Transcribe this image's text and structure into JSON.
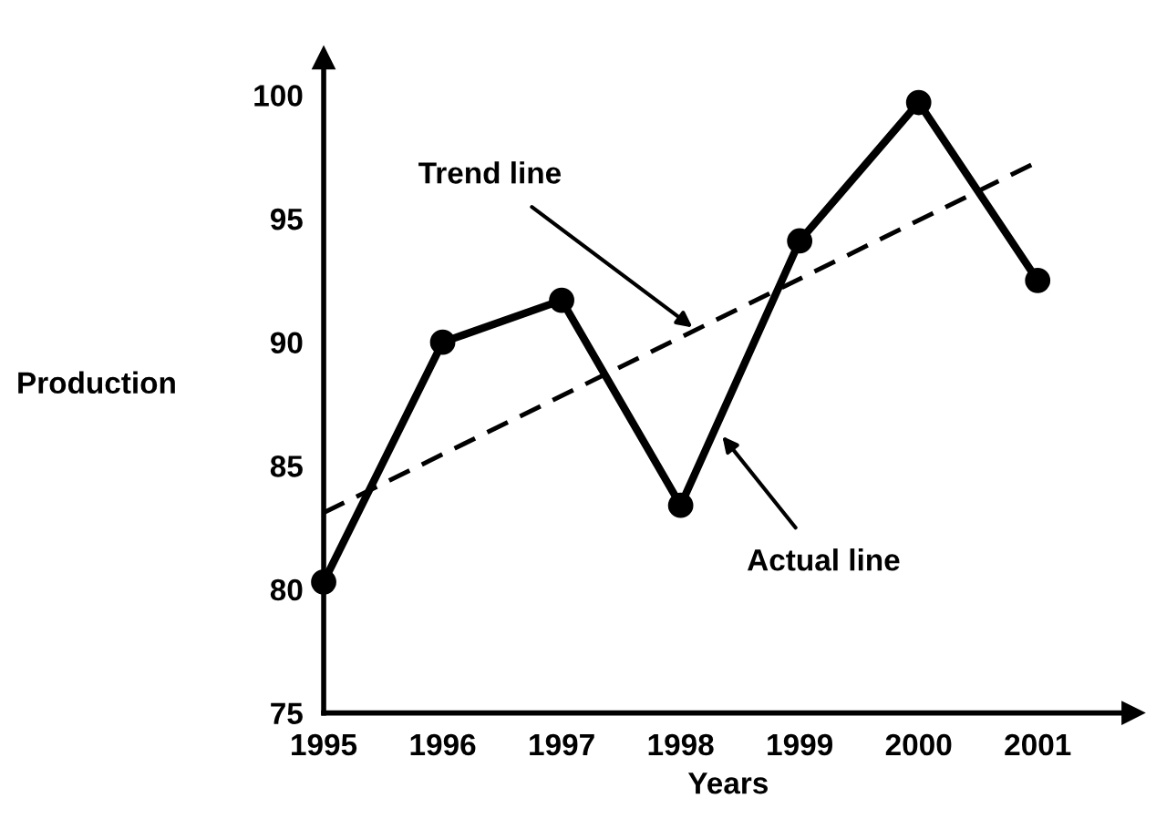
{
  "chart_data": {
    "type": "line",
    "xlabel": "Years",
    "ylabel": "Production",
    "series": [
      {
        "color": "#000000",
        "marker": "circle",
        "line_style": "solid",
        "x": [
          1995,
          1996,
          1997,
          1998,
          1999,
          2000,
          2001
        ],
        "values": [
          80.3,
          90,
          91.7,
          83.4,
          94.1,
          99.7,
          92.5
        ]
      },
      {
        "color": "#000000",
        "marker": "none",
        "line_style": "dashed",
        "x": [
          1995,
          2001
        ],
        "values": [
          83.1,
          97.3
        ]
      }
    ],
    "annotations": [
      {
        "text": "Trend line",
        "x": 1998.1,
        "y": 90.6
      },
      {
        "text": "Actual line",
        "x": 1998.35,
        "y": 86.2
      }
    ],
    "xlim": [
      1995,
      2001.8
    ],
    "ylim": [
      75,
      101.5
    ],
    "xticks": [
      1995,
      1996,
      1997,
      1998,
      1999,
      2000,
      2001
    ],
    "yticks": [
      75,
      80,
      85,
      90,
      95,
      100
    ],
    "grid": false,
    "legend": false
  }
}
